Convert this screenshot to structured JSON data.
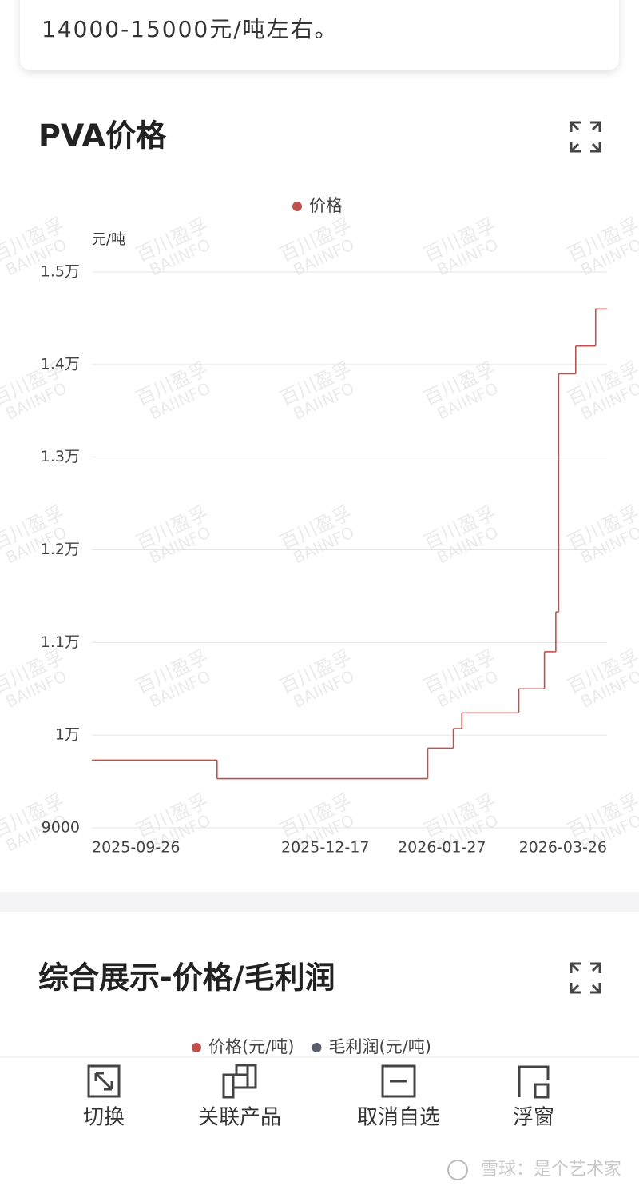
{
  "intro_text": "14000-15000元/吨左右。",
  "chart_data": {
    "type": "line",
    "step": true,
    "title": "PVA价格",
    "y_unit": "元/吨",
    "watermark": [
      "百川盈孚",
      "BAIINFO"
    ],
    "x": [
      "2025-09-26",
      "2025-11-09",
      "2026-01-22",
      "2026-01-31",
      "2026-02-03",
      "2026-02-23",
      "2026-03-04",
      "2026-03-08",
      "2026-03-09",
      "2026-03-15",
      "2026-03-22"
    ],
    "series": [
      {
        "name": "价格",
        "color": "#c0504d",
        "values": [
          9730,
          9530,
          9860,
          10070,
          10240,
          10500,
          10900,
          11330,
          13900,
          14200,
          14600
        ]
      }
    ],
    "xlim": [
      "2025-09-26",
      "2026-03-26"
    ],
    "xticks": [
      "2025-09-26",
      "2025-12-17",
      "2026-01-27",
      "2026-03-26"
    ],
    "ylim": [
      9000,
      15000
    ],
    "yticks": [
      9000,
      {
        "value": 10000,
        "label": "1万"
      },
      {
        "value": 11000,
        "label": "1.1万"
      },
      {
        "value": 12000,
        "label": "1.2万"
      },
      {
        "value": 13000,
        "label": "1.3万"
      },
      {
        "value": 14000,
        "label": "1.4万"
      },
      {
        "value": 15000,
        "label": "1.5万"
      }
    ],
    "grid": true
  },
  "section2": {
    "title": "综合展示-价格/毛利润",
    "legend": [
      {
        "name": "价格(元/吨)",
        "color": "#c0504d"
      },
      {
        "name": "毛利润(元/吨)",
        "color": "#5a5f70"
      }
    ]
  },
  "toolbar": [
    "切换",
    "关联产品",
    "取消自选",
    "浮窗"
  ],
  "footer_watermark": "雪球：是个艺术家"
}
